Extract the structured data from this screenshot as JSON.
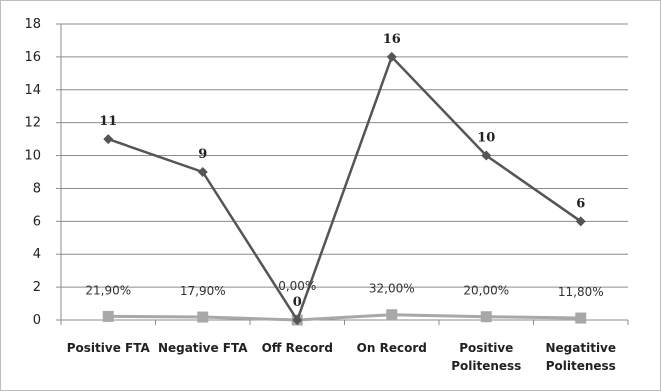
{
  "chart_data": {
    "type": "line",
    "title": "",
    "xlabel": "",
    "ylabel": "",
    "ylim": [
      0,
      18
    ],
    "y_ticks": [
      0,
      2,
      4,
      6,
      8,
      10,
      12,
      14,
      16,
      18
    ],
    "grid": true,
    "legend": "none",
    "categories": [
      [
        "Positive FTA"
      ],
      [
        "Negative FTA"
      ],
      [
        "Off Record"
      ],
      [
        "On Record"
      ],
      [
        "Positive",
        "Politeness"
      ],
      [
        "Negatitive",
        "Politeness"
      ]
    ],
    "series": [
      {
        "values": [
          11,
          9,
          0,
          16,
          10,
          6
        ],
        "data_labels": [
          "11",
          "9",
          "0",
          "16",
          "10",
          "6"
        ],
        "color": "#555555",
        "marker": "diamond"
      },
      {
        "values": [
          0.219,
          0.179,
          0.0,
          0.32,
          0.2,
          0.118
        ],
        "data_labels": [
          "21,90%",
          "17,90%",
          "0,00%",
          "32,00%",
          "20,00%",
          "11,80%"
        ],
        "color": "#a8a8a8",
        "marker": "square"
      }
    ]
  }
}
